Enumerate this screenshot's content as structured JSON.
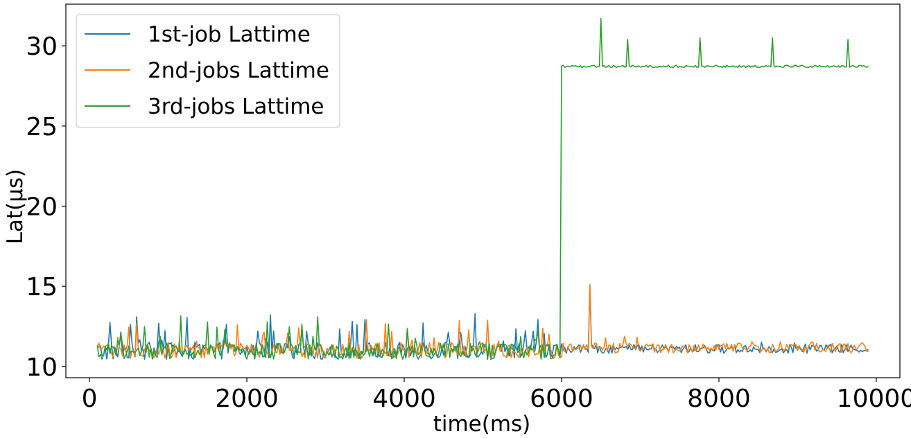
{
  "chart_data": {
    "type": "line",
    "title": "",
    "xlabel": "time(ms)",
    "ylabel": "Lat(μs)",
    "xlim": [
      -300,
      10300
    ],
    "ylim": [
      9.3,
      32.6
    ],
    "x_ticks": [
      0,
      2000,
      4000,
      6000,
      8000,
      10000
    ],
    "y_ticks": [
      10,
      15,
      20,
      25,
      30
    ],
    "grid": false,
    "legend_position": "top-left",
    "x_start": 100,
    "x_end": 9900,
    "x_step": 20,
    "series": [
      {
        "name": "1st-job Lattime",
        "color": "#1f77b4",
        "segments": [
          {
            "x_from": 100,
            "x_to": 6000,
            "base": 10.95,
            "noise": 0.55,
            "spike_prob": 0.12,
            "spike_max": 1.9
          },
          {
            "x_from": 6000,
            "x_to": 9900,
            "base": 11.1,
            "noise": 0.28,
            "spike_prob": 0.04,
            "spike_max": 0.6
          }
        ],
        "peaks": [
          {
            "x": 4900,
            "y": 13.3
          },
          {
            "x": 600,
            "y": 13.1
          },
          {
            "x": 6360,
            "y": 15.1
          }
        ]
      },
      {
        "name": "2nd-jobs Lattime",
        "color": "#ff7f0e",
        "segments": [
          {
            "x_from": 100,
            "x_to": 6000,
            "base": 11.0,
            "noise": 0.5,
            "spike_prob": 0.12,
            "spike_max": 1.7
          },
          {
            "x_from": 6000,
            "x_to": 9900,
            "base": 11.15,
            "noise": 0.3,
            "spike_prob": 0.05,
            "spike_max": 0.6
          }
        ],
        "peaks": [
          {
            "x": 6360,
            "y": 15.1
          }
        ]
      },
      {
        "name": "3rd-jobs Lattime",
        "color": "#2ca02c",
        "segments": [
          {
            "x_from": 100,
            "x_to": 5980,
            "base": 10.95,
            "noise": 0.5,
            "spike_prob": 0.13,
            "spike_max": 1.8
          },
          {
            "x_from": 6000,
            "x_to": 9900,
            "base": 28.72,
            "noise": 0.07,
            "spike_prob": 0.0,
            "spike_max": 0
          }
        ],
        "peaks": [
          {
            "x": 2900,
            "y": 13.1
          },
          {
            "x": 6500,
            "y": 31.7
          },
          {
            "x": 6840,
            "y": 30.4
          },
          {
            "x": 7760,
            "y": 30.5
          },
          {
            "x": 8680,
            "y": 30.5
          },
          {
            "x": 9640,
            "y": 30.4
          }
        ]
      }
    ]
  }
}
